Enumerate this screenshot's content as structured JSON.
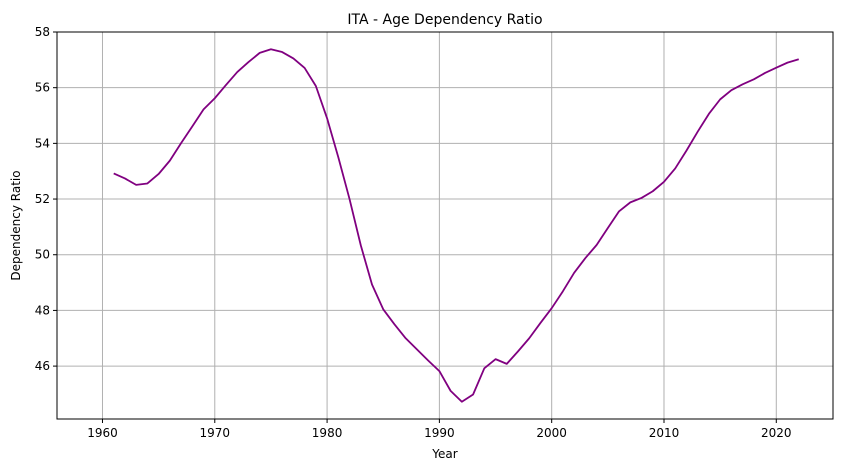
{
  "chart_data": {
    "type": "line",
    "title": "ITA - Age Dependency Ratio",
    "xlabel": "Year",
    "ylabel": "Dependency Ratio",
    "xlim": [
      1955.95,
      2025.05
    ],
    "ylim": [
      44.1,
      58
    ],
    "x_ticks": [
      1960,
      1970,
      1980,
      1990,
      2000,
      2010,
      2020
    ],
    "y_ticks": [
      46,
      48,
      50,
      52,
      54,
      56,
      58
    ],
    "grid": true,
    "colors": {
      "line": "#800080",
      "grid": "#b0b0b0"
    },
    "series": [
      {
        "x": [
          1961,
          1962,
          1963,
          1964,
          1965,
          1966,
          1967,
          1968,
          1969,
          1970,
          1971,
          1972,
          1973,
          1974,
          1975,
          1976,
          1977,
          1978,
          1979,
          1980,
          1981,
          1982,
          1983,
          1984,
          1985,
          1986,
          1987,
          1988,
          1989,
          1990,
          1991,
          1992,
          1993,
          1994,
          1995,
          1996,
          1997,
          1998,
          1999,
          2000,
          2001,
          2002,
          2003,
          2004,
          2005,
          2006,
          2007,
          2008,
          2009,
          2010,
          2011,
          2012,
          2013,
          2014,
          2015,
          2016,
          2017,
          2018,
          2019,
          2020,
          2021,
          2022
        ],
        "y": [
          52.92,
          52.74,
          52.51,
          52.56,
          52.9,
          53.38,
          54.01,
          54.61,
          55.22,
          55.62,
          56.1,
          56.56,
          56.92,
          57.25,
          57.38,
          57.28,
          57.05,
          56.71,
          56.06,
          54.9,
          53.5,
          52.0,
          50.34,
          48.93,
          48.04,
          47.5,
          47.0,
          46.6,
          46.2,
          45.82,
          45.11,
          44.72,
          44.98,
          45.92,
          46.25,
          46.08,
          46.53,
          47.0,
          47.55,
          48.08,
          48.69,
          49.35,
          49.88,
          50.35,
          50.96,
          51.56,
          51.88,
          52.04,
          52.28,
          52.62,
          53.1,
          53.74,
          54.42,
          55.06,
          55.58,
          55.91,
          56.12,
          56.3,
          56.53,
          56.72,
          56.9,
          57.02
        ]
      }
    ]
  }
}
